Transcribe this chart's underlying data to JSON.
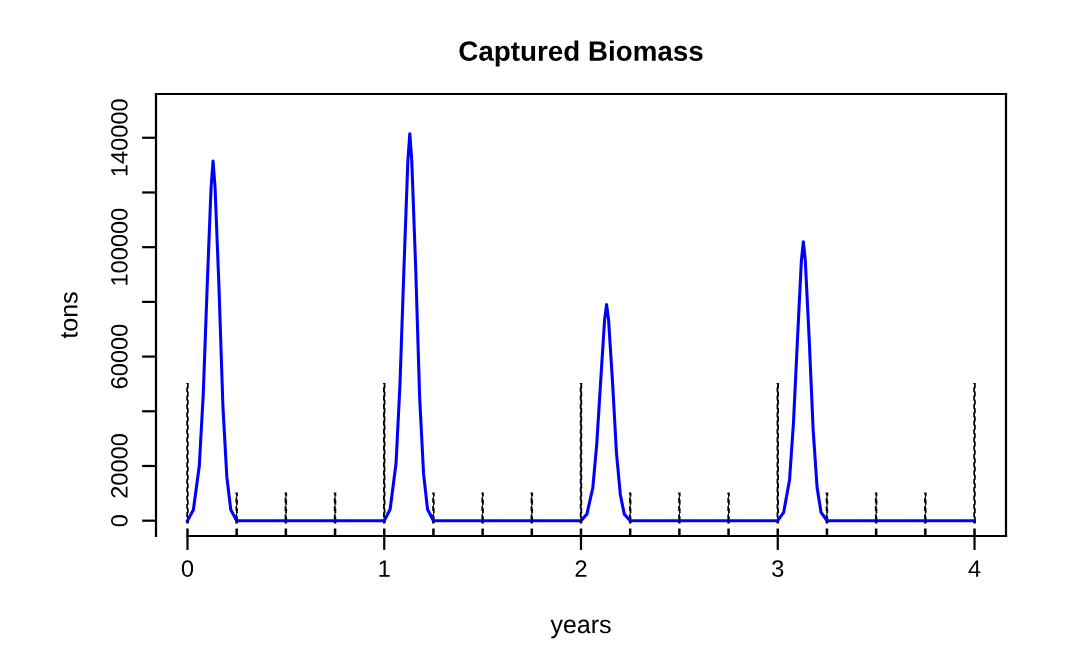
{
  "chart_data": {
    "type": "line",
    "title": "Captured Biomass",
    "xlabel": "years",
    "ylabel": "tons",
    "series": [
      {
        "color": "#0000ff",
        "x": [
          0,
          0.03,
          0.06,
          0.08,
          0.1,
          0.12,
          0.13,
          0.14,
          0.16,
          0.18,
          0.2,
          0.22,
          0.25,
          1,
          1.03,
          1.06,
          1.08,
          1.1,
          1.12,
          1.13,
          1.14,
          1.16,
          1.18,
          1.2,
          1.22,
          1.25,
          2,
          2.03,
          2.06,
          2.08,
          2.1,
          2.12,
          2.13,
          2.14,
          2.16,
          2.18,
          2.2,
          2.22,
          2.25,
          3,
          3.03,
          3.06,
          3.08,
          3.1,
          3.12,
          3.13,
          3.14,
          3.16,
          3.18,
          3.2,
          3.22,
          3.25,
          4
        ],
        "values": [
          0,
          4000,
          20000,
          46000,
          85500,
          122000,
          131500,
          122000,
          85500,
          42000,
          16000,
          4000,
          0,
          0,
          4200,
          21000,
          50000,
          92000,
          131500,
          141500,
          131500,
          92000,
          45000,
          17000,
          4200,
          0,
          0,
          2400,
          12000,
          28000,
          51000,
          73500,
          79000,
          73500,
          51000,
          25000,
          9500,
          2400,
          0,
          0,
          3000,
          15000,
          36000,
          66000,
          95000,
          102000,
          95000,
          66000,
          33000,
          12000,
          3000,
          0,
          0
        ]
      },
      {
        "type": "bar",
        "color": "#000000",
        "line_style": "dashed",
        "x": [
          0,
          0.25,
          0.5,
          0.75,
          1,
          1.25,
          1.5,
          1.75,
          2,
          2.25,
          2.5,
          2.75,
          3,
          3.25,
          3.5,
          3.75,
          4
        ],
        "values": [
          50000,
          10000,
          10000,
          10000,
          50000,
          10000,
          10000,
          10000,
          50000,
          10000,
          10000,
          10000,
          50000,
          10000,
          10000,
          10000,
          50000
        ]
      }
    ],
    "xlim": [
      -0.16,
      4.16
    ],
    "xticks": [
      0,
      1,
      2,
      3,
      4
    ],
    "ylim": [
      -5600,
      156000
    ],
    "yticks": [
      0,
      20000,
      {
        "value": 40000,
        "label": null
      },
      60000,
      {
        "value": 80000,
        "label": null
      },
      100000,
      {
        "value": 120000,
        "label": null
      },
      140000
    ],
    "grid": false,
    "legend": false
  }
}
